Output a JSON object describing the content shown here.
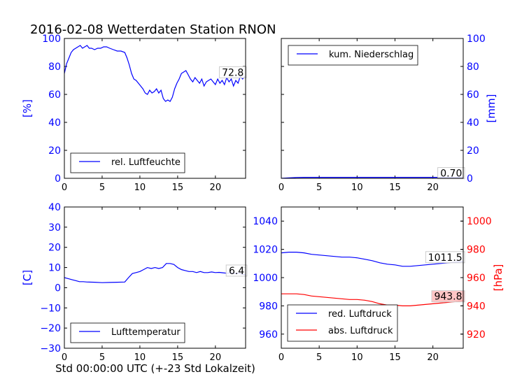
{
  "title": "2016-02-08 Wetterdaten Station RNON",
  "xlabel": "Std 00:00:00 UTC (+-23 Std Lokalzeit)",
  "colors": {
    "blue": "#0000ff",
    "red": "#ff0000",
    "pressure_box": "#ffbbbb",
    "box": "#cccccc"
  },
  "chart_data": [
    {
      "type": "line",
      "id": "humidity",
      "ylabel": "[%]",
      "xlim": [
        0,
        24
      ],
      "ylim": [
        0,
        100
      ],
      "xticks": [
        0,
        5,
        10,
        15,
        20
      ],
      "yticks": [
        0,
        20,
        40,
        60,
        80,
        100
      ],
      "legend": "bottom-left",
      "series": [
        {
          "name": "rel. Luftfeuchte",
          "color": "#0000ff",
          "x": [
            0,
            0.3,
            0.6,
            0.9,
            1.2,
            1.5,
            1.8,
            2.1,
            2.4,
            2.7,
            3.0,
            3.3,
            3.6,
            4.0,
            4.4,
            4.8,
            5.2,
            5.6,
            6.0,
            6.5,
            7.0,
            7.5,
            8.0,
            8.3,
            8.6,
            8.9,
            9.2,
            9.5,
            9.8,
            10.1,
            10.4,
            10.7,
            11.0,
            11.3,
            11.6,
            11.9,
            12.2,
            12.5,
            12.8,
            13.1,
            13.4,
            13.7,
            14.0,
            14.3,
            14.6,
            14.9,
            15.2,
            15.5,
            15.8,
            16.1,
            16.4,
            16.7,
            17.0,
            17.3,
            17.6,
            17.9,
            18.2,
            18.5,
            18.8,
            19.1,
            19.4,
            19.7,
            20.0,
            20.3,
            20.6,
            20.9,
            21.2,
            21.5,
            21.8,
            22.1,
            22.4,
            22.7,
            23.0,
            23.3,
            23.6,
            23.9
          ],
          "y": [
            75,
            82,
            86,
            90,
            92,
            93,
            94,
            95,
            93,
            94,
            95,
            93,
            93,
            92,
            93,
            93,
            94,
            94,
            93,
            92,
            91,
            91,
            90,
            86,
            81,
            75,
            71,
            70,
            68,
            66,
            64,
            61,
            60,
            63,
            61,
            62,
            64,
            61,
            63,
            57,
            55,
            56,
            55,
            58,
            64,
            68,
            71,
            75,
            76,
            77,
            74,
            71,
            69,
            72,
            70,
            68,
            71,
            66,
            69,
            70,
            71,
            69,
            67,
            71,
            68,
            70,
            67,
            72,
            69,
            71,
            66,
            70,
            68,
            73,
            71,
            72.8
          ],
          "last_label": "72.8"
        }
      ]
    },
    {
      "type": "line",
      "id": "precipitation",
      "ylabel": "[mm]",
      "xlim": [
        0,
        24
      ],
      "ylim": [
        0,
        100
      ],
      "xticks": [
        0,
        5,
        10,
        15,
        20
      ],
      "yticks": [
        0,
        20,
        40,
        60,
        80,
        100
      ],
      "legend": "top-left",
      "series": [
        {
          "name": "kum. Niederschlag",
          "color": "#0000ff",
          "x": [
            0,
            1.0,
            2.0,
            3.0,
            6.0,
            12.0,
            18.0,
            24.0
          ],
          "y": [
            0,
            0.3,
            0.6,
            0.7,
            0.7,
            0.7,
            0.7,
            0.7
          ],
          "last_label": "0.70"
        }
      ]
    },
    {
      "type": "line",
      "id": "temperature",
      "ylabel": "[C]",
      "xlim": [
        0,
        24
      ],
      "ylim": [
        -30,
        40
      ],
      "xticks": [
        0,
        5,
        10,
        15,
        20
      ],
      "yticks": [
        -30,
        -20,
        -10,
        0,
        10,
        20,
        30,
        40
      ],
      "legend": "bottom-left",
      "series": [
        {
          "name": "Lufttemperatur",
          "color": "#0000ff",
          "x": [
            0,
            0.5,
            1.0,
            1.5,
            2.0,
            2.5,
            3.0,
            4.0,
            5.0,
            6.0,
            7.0,
            8.0,
            8.5,
            9.0,
            9.5,
            10.0,
            10.5,
            11.0,
            11.5,
            12.0,
            12.5,
            13.0,
            13.5,
            14.0,
            14.5,
            15.0,
            15.5,
            16.0,
            16.5,
            17.0,
            17.5,
            18.0,
            18.5,
            19.0,
            19.5,
            20.0,
            20.5,
            21.0,
            21.5,
            22.0,
            22.5,
            23.0,
            23.5,
            24.0
          ],
          "y": [
            5,
            4.5,
            4,
            3.5,
            3,
            3,
            2.8,
            2.7,
            2.5,
            2.6,
            2.7,
            2.8,
            5,
            7,
            7.5,
            8,
            9,
            10,
            9.5,
            10,
            9.5,
            10,
            12,
            12,
            11.5,
            10,
            9,
            8.5,
            8,
            8,
            7.5,
            8,
            7.5,
            7.5,
            7.8,
            7.5,
            7.6,
            7.4,
            7.2,
            7.4,
            7,
            7.2,
            6.8,
            6.4
          ],
          "last_label": "6.4"
        }
      ]
    },
    {
      "type": "line",
      "id": "pressure",
      "xlim": [
        0,
        24
      ],
      "ylim": [
        950,
        1050
      ],
      "y2lim": [
        910,
        1010
      ],
      "y2label": "[hPa]",
      "xticks": [
        0,
        5,
        10,
        15,
        20
      ],
      "yticks": [
        960,
        980,
        1000,
        1020,
        1040
      ],
      "y2ticks": [
        920,
        940,
        960,
        980,
        1000
      ],
      "legend": "bottom-left",
      "series": [
        {
          "name": "red. Luftdruck",
          "color": "#0000ff",
          "axis": "left",
          "x": [
            0,
            1.0,
            2.0,
            3.0,
            4.0,
            5.0,
            6.0,
            7.0,
            8.0,
            9.0,
            10.0,
            11.0,
            12.0,
            13.0,
            14.0,
            15.0,
            16.0,
            17.0,
            18.0,
            19.0,
            20.0,
            21.0,
            22.0,
            23.0,
            24.0
          ],
          "y": [
            1017.5,
            1018,
            1018,
            1017.5,
            1016.5,
            1016,
            1015.5,
            1015,
            1014.5,
            1014.5,
            1014,
            1013,
            1012,
            1010.5,
            1009.5,
            1009,
            1008,
            1008,
            1008.5,
            1009,
            1009.5,
            1010,
            1010.5,
            1011,
            1011.5
          ],
          "last_label": "1011.5"
        },
        {
          "name": "abs. Luftdruck",
          "color": "#ff0000",
          "axis": "right",
          "x": [
            0,
            1.0,
            2.0,
            3.0,
            4.0,
            5.0,
            6.0,
            7.0,
            8.0,
            9.0,
            10.0,
            11.0,
            12.0,
            13.0,
            14.0,
            15.0,
            16.0,
            17.0,
            18.0,
            19.0,
            20.0,
            21.0,
            22.0,
            23.0,
            24.0
          ],
          "y": [
            948.5,
            948.5,
            948.5,
            948,
            947,
            946.5,
            946,
            945.5,
            945,
            944.5,
            944.5,
            944,
            943,
            941.5,
            940.5,
            940.5,
            940,
            940,
            940.5,
            941,
            941.5,
            942,
            942.5,
            943,
            943.8
          ],
          "last_label": "943.8"
        }
      ]
    }
  ]
}
